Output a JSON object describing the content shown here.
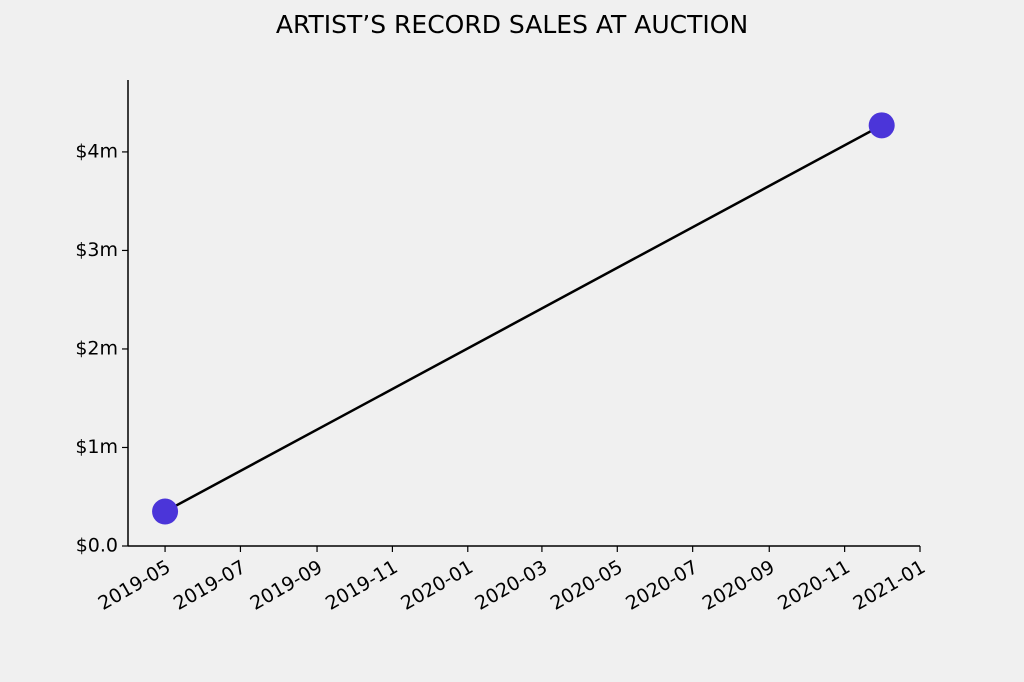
{
  "chart_data": {
    "type": "line",
    "title": "ARTIST’S RECORD SALES AT AUCTION",
    "x": [
      "2019-05",
      "2020-12"
    ],
    "values": [
      0.35,
      4.27
    ],
    "line_color": "#000000",
    "marker_color": "#4b35d9",
    "xlim": [
      "2019-04",
      "2021-01"
    ],
    "xticks": [
      "2019-05",
      "2019-07",
      "2019-09",
      "2019-11",
      "2020-01",
      "2020-03",
      "2020-05",
      "2020-07",
      "2020-09",
      "2020-11",
      "2021-01"
    ],
    "ylim": [
      0,
      4.73
    ],
    "yticks": [
      {
        "value": 0,
        "label": "$0.0"
      },
      {
        "value": 1,
        "label": "$1m"
      },
      {
        "value": 2,
        "label": "$2m"
      },
      {
        "value": 3,
        "label": "$3m"
      },
      {
        "value": 4,
        "label": "$4m"
      }
    ]
  }
}
